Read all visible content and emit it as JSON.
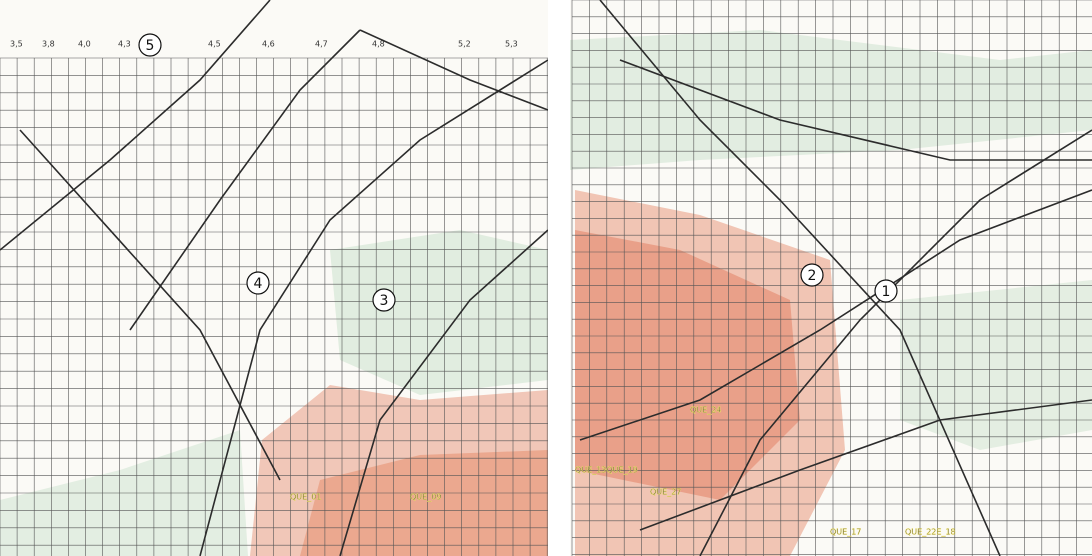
{
  "panels": [
    {
      "markers": [
        "5",
        "4",
        "3"
      ],
      "top_labels": [
        "3,5",
        "3,8",
        "4,0",
        "4,3",
        "4,5",
        "4,6",
        "4,7",
        "4,8",
        "5,2",
        "5,3"
      ]
    },
    {
      "markers": [
        "2",
        "1"
      ],
      "labels": [
        "QUE_01",
        "QUE_09",
        "QUE_24",
        "QUE_27",
        "QUE_17",
        "QUE_22E_18",
        "QUE_13QUE_19"
      ]
    }
  ]
}
